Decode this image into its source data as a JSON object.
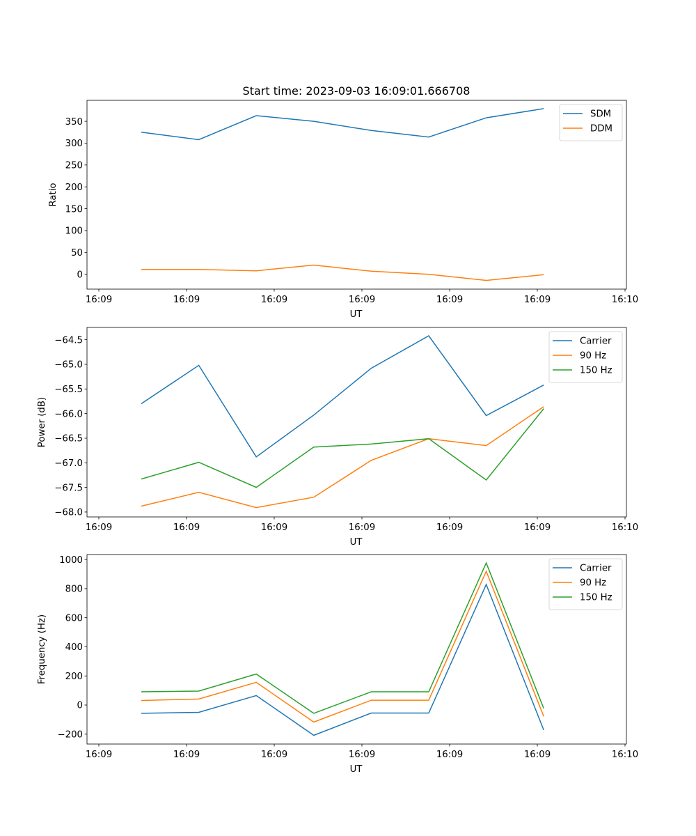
{
  "chart_data": [
    {
      "type": "line",
      "title": "Start time: 2023-09-03 16:09:01.666708",
      "xlabel": "UT",
      "ylabel": "Ratio",
      "x_index": [
        0,
        1,
        2,
        3,
        4,
        5,
        6,
        7
      ],
      "x_tick_labels": [
        "16:09",
        "16:09",
        "16:09",
        "16:09",
        "16:09",
        "16:09",
        "16:10"
      ],
      "y_ticks": [
        0,
        50,
        100,
        150,
        200,
        250,
        300,
        350
      ],
      "y_tick_labels": [
        "0",
        "50",
        "100",
        "150",
        "200",
        "250",
        "300",
        "350"
      ],
      "ylim": [
        -34,
        398
      ],
      "grid": false,
      "legend_position": "top-right",
      "series": [
        {
          "name": "SDM",
          "color": "#1f77b4",
          "values": [
            325,
            308,
            363,
            350,
            329,
            314,
            358,
            379
          ]
        },
        {
          "name": "DDM",
          "color": "#ff7f0e",
          "values": [
            11,
            11,
            8,
            21,
            7,
            0,
            -14,
            -1
          ]
        }
      ]
    },
    {
      "type": "line",
      "title": "",
      "xlabel": "UT",
      "ylabel": "Power (dB)",
      "x_index": [
        0,
        1,
        2,
        3,
        4,
        5,
        6,
        7
      ],
      "x_tick_labels": [
        "16:09",
        "16:09",
        "16:09",
        "16:09",
        "16:09",
        "16:09",
        "16:10"
      ],
      "y_ticks": [
        -68.0,
        -67.5,
        -67.0,
        -66.5,
        -66.0,
        -65.5,
        -65.0,
        -64.5
      ],
      "y_tick_labels": [
        "−68.0",
        "−67.5",
        "−67.0",
        "−66.5",
        "−66.0",
        "−65.5",
        "−65.0",
        "−64.5"
      ],
      "ylim": [
        -68.1,
        -64.25
      ],
      "grid": false,
      "legend_position": "top-right",
      "series": [
        {
          "name": "Carrier",
          "color": "#1f77b4",
          "values": [
            -65.8,
            -65.02,
            -66.88,
            -66.03,
            -65.08,
            -64.42,
            -66.04,
            -65.42
          ]
        },
        {
          "name": "90 Hz",
          "color": "#ff7f0e",
          "values": [
            -67.88,
            -67.6,
            -67.91,
            -67.7,
            -66.95,
            -66.51,
            -66.65,
            -65.86
          ]
        },
        {
          "name": "150 Hz",
          "color": "#2ca02c",
          "values": [
            -67.33,
            -66.99,
            -67.5,
            -66.68,
            -66.62,
            -66.51,
            -67.35,
            -65.9
          ]
        }
      ]
    },
    {
      "type": "line",
      "title": "",
      "xlabel": "UT",
      "ylabel": "Frequency (Hz)",
      "x_index": [
        0,
        1,
        2,
        3,
        4,
        5,
        6,
        7
      ],
      "x_tick_labels": [
        "16:09",
        "16:09",
        "16:09",
        "16:09",
        "16:09",
        "16:09",
        "16:10"
      ],
      "y_ticks": [
        -200,
        0,
        200,
        400,
        600,
        800,
        1000
      ],
      "y_tick_labels": [
        "−200",
        "0",
        "200",
        "400",
        "600",
        "800",
        "1000"
      ],
      "ylim": [
        -268,
        1034
      ],
      "grid": false,
      "legend_position": "top-right",
      "series": [
        {
          "name": "Carrier",
          "color": "#1f77b4",
          "values": [
            -57,
            -50,
            65,
            -208,
            -55,
            -55,
            828,
            -172
          ]
        },
        {
          "name": "90 Hz",
          "color": "#ff7f0e",
          "values": [
            31,
            41,
            156,
            -117,
            33,
            33,
            919,
            -78
          ]
        },
        {
          "name": "150 Hz",
          "color": "#2ca02c",
          "values": [
            91,
            96,
            213,
            -57,
            91,
            91,
            976,
            -23
          ]
        }
      ]
    }
  ]
}
